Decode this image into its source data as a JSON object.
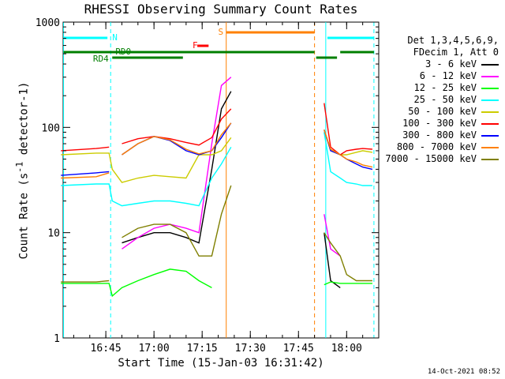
{
  "chart_data": {
    "type": "line",
    "title": "RHESSI Observing Summary Count Rates",
    "xlabel": "Start Time (15-Jan-03 16:31:42)",
    "ylabel": {
      "prefix": "Count Rate (s",
      "exponent": "-1",
      "suffix": " detector-1)"
    },
    "y_scale": "log",
    "ylim": [
      1,
      1000
    ],
    "ytick_labels": [
      "1",
      "10",
      "100",
      "1000"
    ],
    "ytick_values": [
      1,
      10,
      100,
      1000
    ],
    "xlim": [
      "16:31:42",
      "18:10:00"
    ],
    "xtick_labels": [
      "16:45",
      "17:00",
      "17:15",
      "17:30",
      "17:45",
      "18:00"
    ],
    "legend_header": [
      "Det 1,3,4,5,6,9,",
      "FDecim 1, Att 0"
    ],
    "timestamp": "14-Oct-2021 08:52",
    "annotations": {
      "flags": [
        {
          "label": "N",
          "color": "#00ffff"
        },
        {
          "label": "S",
          "color": "#ff8000"
        },
        {
          "label": "F",
          "color": "#ff0000"
        },
        {
          "label": "RD0",
          "color": "#007f00"
        },
        {
          "label": "RD4",
          "color": "#007f00"
        }
      ]
    },
    "series": [
      {
        "name": "3 - 6 keV",
        "color": "#000000"
      },
      {
        "name": "6 - 12 keV",
        "color": "#ff00ff"
      },
      {
        "name": "12 - 25 keV",
        "color": "#00ff00"
      },
      {
        "name": "25 - 50 keV",
        "color": "#00ffff"
      },
      {
        "name": "50 - 100 keV",
        "color": "#cccc00"
      },
      {
        "name": "100 - 300 keV",
        "color": "#ff0000"
      },
      {
        "name": "300 - 800 keV",
        "color": "#0000ff"
      },
      {
        "name": "800 - 7000 keV",
        "color": "#ff8000"
      },
      {
        "name": "7000 - 15000 keV",
        "color": "#7f7f00"
      }
    ],
    "curves": {
      "times": [
        "16:31",
        "16:42",
        "16:46",
        "16:47",
        "16:50",
        "16:55",
        "17:00",
        "17:05",
        "17:10",
        "17:14",
        "17:18",
        "17:21",
        "17:24",
        "17:52",
        "17:53",
        "17:55",
        "17:58",
        "18:00",
        "18:03",
        "18:05",
        "18:08"
      ],
      "3-6": [
        null,
        null,
        null,
        null,
        8,
        9,
        10,
        10,
        9,
        8,
        40,
        150,
        220,
        null,
        10,
        3.5,
        3,
        null,
        null,
        null,
        null
      ],
      "6-12": [
        null,
        null,
        null,
        null,
        7,
        9,
        11,
        12,
        11,
        10,
        70,
        250,
        300,
        null,
        15,
        7,
        6,
        null,
        null,
        null,
        null
      ],
      "12-25": [
        3.3,
        3.3,
        3.3,
        2.5,
        3,
        3.5,
        4,
        4.5,
        4.3,
        3.5,
        3,
        null,
        null,
        null,
        3.2,
        3.4,
        3.3,
        3.3,
        3.3,
        3.3,
        3.3
      ],
      "25-50": [
        28,
        29,
        29,
        20,
        18,
        19,
        20,
        20,
        19,
        18,
        33,
        45,
        65,
        null,
        90,
        38,
        33,
        30,
        29,
        28,
        28
      ],
      "50-100": [
        55,
        57,
        57,
        40,
        30,
        33,
        35,
        34,
        33,
        55,
        55,
        60,
        80,
        null,
        95,
        60,
        55,
        55,
        58,
        60,
        58
      ],
      "100-300": [
        60,
        63,
        65,
        null,
        70,
        78,
        82,
        78,
        72,
        68,
        80,
        120,
        150,
        null,
        170,
        65,
        55,
        60,
        62,
        63,
        62
      ],
      "300-800": [
        35,
        37,
        38,
        null,
        55,
        70,
        82,
        75,
        60,
        55,
        60,
        80,
        110,
        null,
        95,
        60,
        55,
        50,
        45,
        42,
        40
      ],
      "800-7000": [
        33,
        34,
        37,
        null,
        55,
        70,
        82,
        76,
        62,
        56,
        60,
        85,
        110,
        null,
        95,
        62,
        55,
        50,
        47,
        44,
        42
      ],
      "7000-15000": [
        3.4,
        3.4,
        3.5,
        null,
        9,
        11,
        12,
        12,
        10,
        6,
        6,
        15,
        28,
        null,
        10,
        8,
        6,
        4,
        3.5,
        3.5,
        3.5
      ]
    },
    "grid": false
  }
}
